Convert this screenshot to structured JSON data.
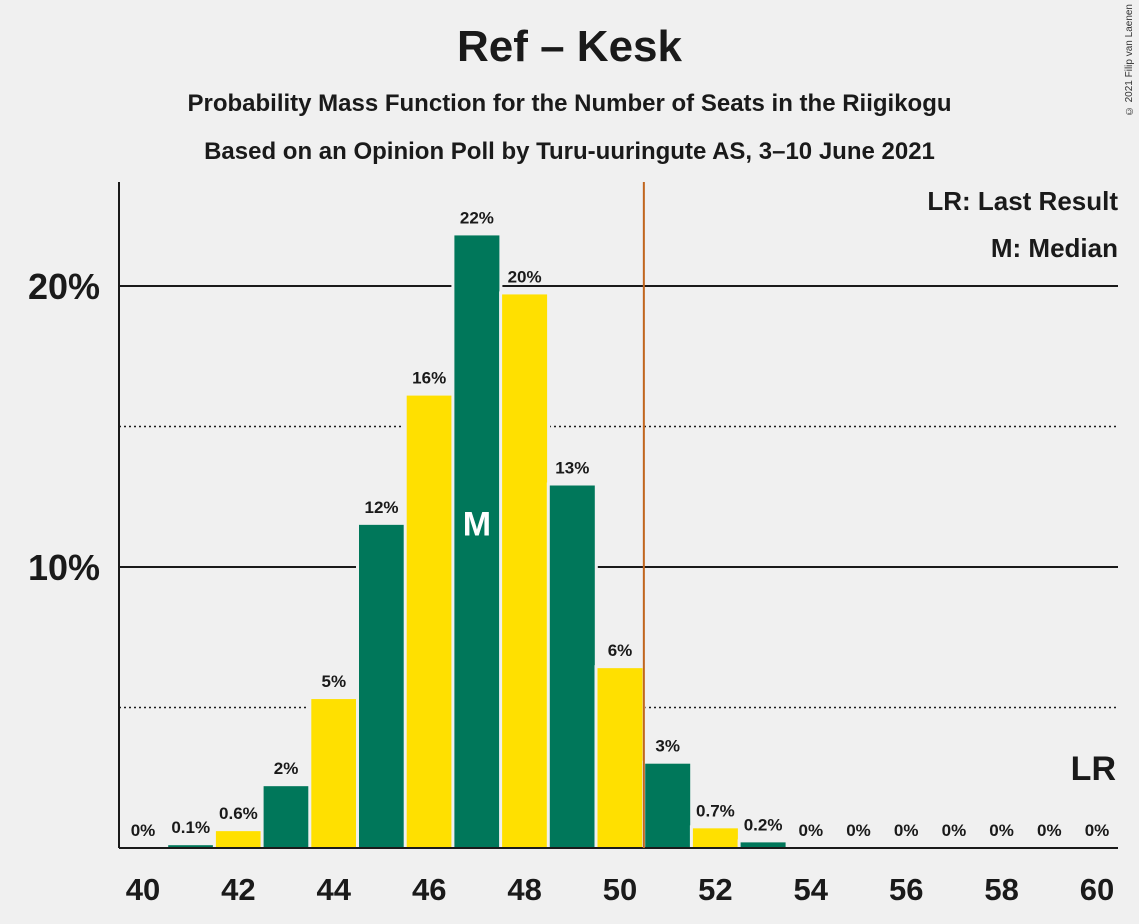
{
  "title": "Ref – Kesk",
  "subtitle1": "Probability Mass Function for the Number of Seats in the Riigikogu",
  "subtitle2": "Based on an Opinion Poll by Turu-uuringute AS, 3–10 June 2021",
  "copyright": "© 2021 Filip van Laenen",
  "legend": {
    "last_result": "LR: Last Result",
    "median": "M: Median"
  },
  "lr_marker": "LR",
  "median_marker": "M",
  "colors": {
    "green": "#00775a",
    "yellow": "#ffe000",
    "last_result_line": "#c0651d",
    "background": "#f0f0f0"
  },
  "chart_data": {
    "type": "bar",
    "x": [
      40,
      41,
      42,
      43,
      44,
      45,
      46,
      47,
      48,
      49,
      50,
      51,
      52,
      53,
      54,
      55,
      56,
      57,
      58,
      59,
      60
    ],
    "values": [
      0,
      0.1,
      0.6,
      2.2,
      5.3,
      11.5,
      16.1,
      21.8,
      19.7,
      12.9,
      6.4,
      3.0,
      0.7,
      0.2,
      0,
      0,
      0,
      0,
      0,
      0,
      0
    ],
    "labels": [
      "0%",
      "0.1%",
      "0.6%",
      "2%",
      "5%",
      "12%",
      "16%",
      "22%",
      "20%",
      "13%",
      "6%",
      "3%",
      "0.7%",
      "0.2%",
      "0%",
      "0%",
      "0%",
      "0%",
      "0%",
      "0%",
      "0%"
    ],
    "x_ticks": [
      "40",
      "42",
      "44",
      "46",
      "48",
      "50",
      "52",
      "54",
      "56",
      "58",
      "60"
    ],
    "y_ticks": [
      "10%",
      "20%"
    ],
    "ylim": [
      0,
      23.7
    ],
    "median_seat": 47,
    "last_result_seat": 50.5,
    "unit": "%"
  }
}
